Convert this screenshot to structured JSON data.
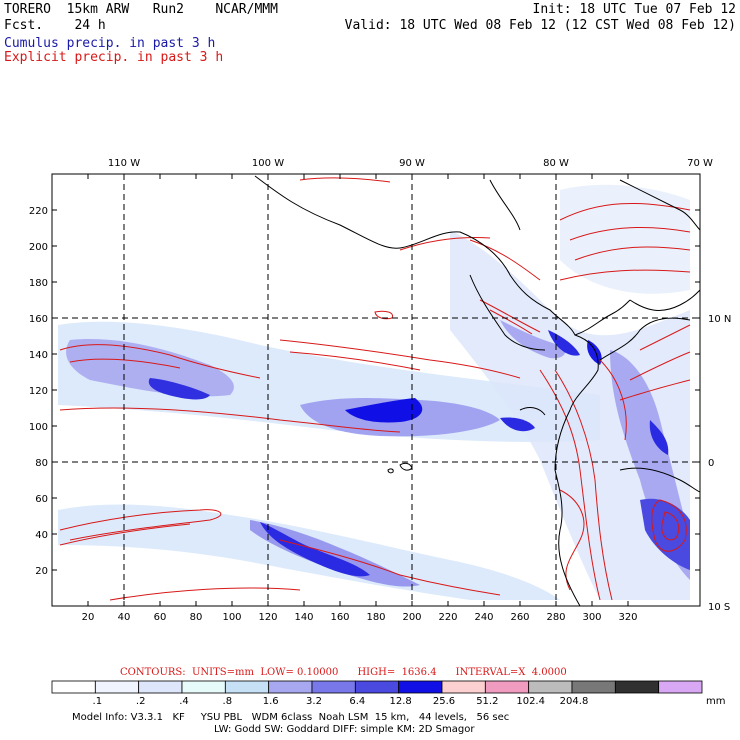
{
  "header": {
    "left_line1": "TORERO  15km ARW   Run2    NCAR/MMM",
    "left_line2": "Fcst.    24 h",
    "right_line1": "Init: 18 UTC Tue 07 Feb 12",
    "right_line2": "Valid: 18 UTC Wed 08 Feb 12 (12 CST Wed 08 Feb 12)",
    "field1": "Cumulus precip. in past 3 h",
    "field2": "Explicit precip. in past 3 h"
  },
  "map": {
    "lon_labels": [
      "110 W",
      "100 W",
      "90 W",
      "80 W",
      "70 W"
    ],
    "lat_labels": [
      "10 N",
      "0",
      "10 S"
    ],
    "y_ticks": [
      "220",
      "200",
      "180",
      "160",
      "140",
      "120",
      "100",
      "80",
      "60",
      "40",
      "20"
    ],
    "x_ticks": [
      "20",
      "40",
      "60",
      "80",
      "100",
      "120",
      "140",
      "160",
      "180",
      "200",
      "220",
      "240",
      "260",
      "280",
      "300",
      "320"
    ]
  },
  "contours_line": "CONTOURS:  UNITS=mm  LOW= 0.10000      HIGH=  1636.4      INTERVAL=X  4.0000",
  "colorbar": {
    "labels": [
      ".1",
      ".2",
      ".4",
      ".8",
      "1.6",
      "3.2",
      "6.4",
      "12.8",
      "25.6",
      "51.2",
      "102.4",
      "204.8"
    ],
    "unit": "mm",
    "colors": [
      "#ffffff",
      "#f0f4ff",
      "#dde6fa",
      "#e8fbfb",
      "#c6e0f5",
      "#a8a8f0",
      "#7878ea",
      "#4a4ae0",
      "#1010e6",
      "#fcd0d0",
      "#f09cc0",
      "#bcbcbc",
      "#787878",
      "#303030",
      "#d8a8f4"
    ]
  },
  "footer": {
    "line1": "Model Info: V3.3.1   KF     YSU PBL   WDM 6class  Noah LSM  15 km,   44 levels,   56 sec",
    "line2": "LW: Godd SW: Goddard DIFF: simple KM: 2D Smagor"
  }
}
